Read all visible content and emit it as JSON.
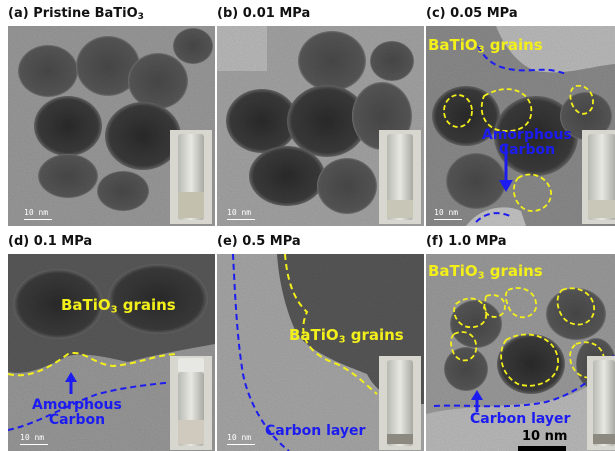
{
  "panels": [
    {
      "letter": "(a)",
      "label": "Pristine BaTiO",
      "label_sub": "3"
    },
    {
      "letter": "(b)",
      "label": "0.01 MPa"
    },
    {
      "letter": "(c)",
      "label": "0.05 MPa"
    },
    {
      "letter": "(d)",
      "label": "0.1 MPa"
    },
    {
      "letter": "(e)",
      "label": "0.5 MPa"
    },
    {
      "letter": "(f)",
      "label": "1.0 MPa"
    }
  ],
  "annotations": {
    "grains_main": "BaTiO",
    "grains_sub": "3",
    "grains_tail": " grains",
    "amorphous_1": "Amorphous",
    "amorphous_2": "Carbon",
    "carbon_layer": "Carbon layer"
  },
  "scale_bar_small": "10 nm",
  "scale_bar_large": "10 nm",
  "colors": {
    "annotation_yellow": "#f2ef1a",
    "annotation_blue": "#1c1cf0"
  }
}
